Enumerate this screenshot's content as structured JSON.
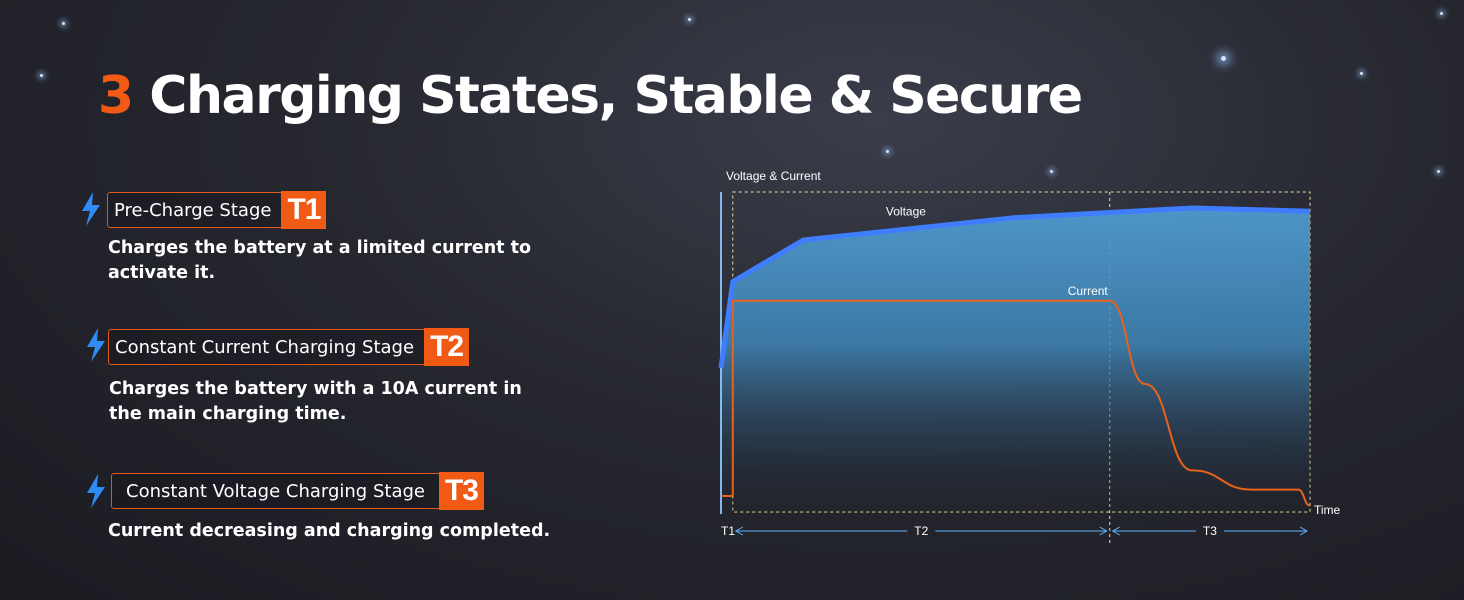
{
  "title": {
    "number": "3",
    "text": "Charging States, Stable & Secure"
  },
  "stages": [
    {
      "label": "Pre-Charge Stage",
      "tag": "T1",
      "description": "Charges the battery at a limited current to activate it."
    },
    {
      "label": "Constant Current Charging Stage",
      "tag": "T2",
      "description": "Charges the battery with a 10A current in the main charging time."
    },
    {
      "label": "Constant Voltage Charging Stage",
      "tag": "T3",
      "description": "Current decreasing and charging completed."
    }
  ],
  "colors": {
    "accent": "#f05a14",
    "voltage": "#3f8cff",
    "current": "#e8621a"
  },
  "icon": "lightning-bolt-icon",
  "chart_data": {
    "type": "line",
    "ylabel": "Voltage & Current",
    "xlabel": "Time",
    "phases": [
      "T1",
      "T2",
      "T3"
    ],
    "phase_boundaries": [
      0.02,
      0.66
    ],
    "series": [
      {
        "name": "Voltage",
        "x": [
          0,
          0.02,
          0.14,
          0.5,
          0.8,
          1.0
        ],
        "values": [
          0.45,
          0.72,
          0.85,
          0.92,
          0.95,
          0.94
        ]
      },
      {
        "name": "Current",
        "x": [
          0,
          0.02,
          0.66,
          0.72,
          0.8,
          0.9,
          0.98,
          1.0
        ],
        "values": [
          0.05,
          0.66,
          0.66,
          0.4,
          0.13,
          0.07,
          0.07,
          0.02
        ]
      }
    ]
  }
}
